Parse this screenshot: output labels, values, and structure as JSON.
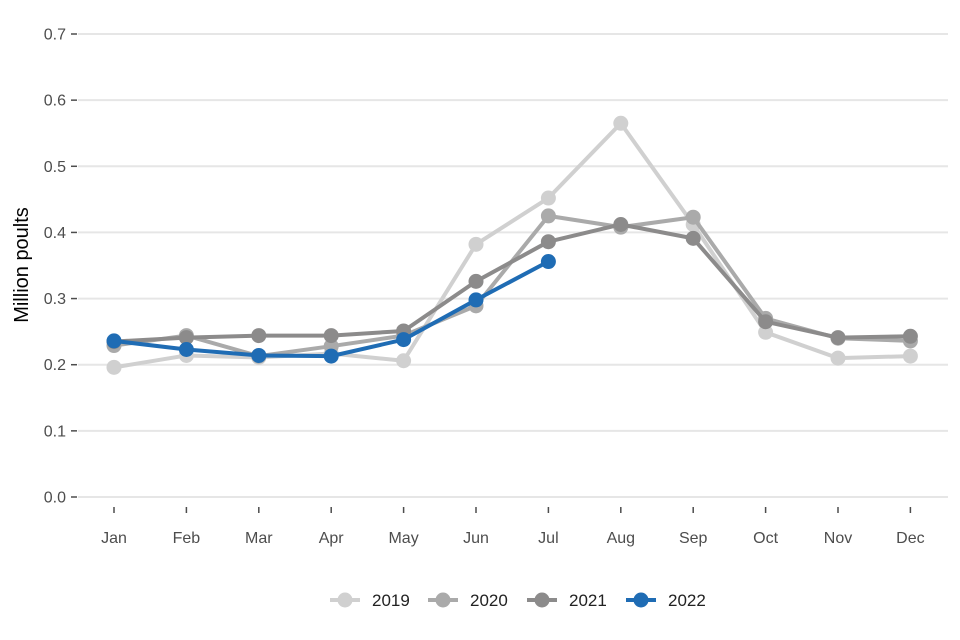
{
  "chart_data": {
    "type": "line",
    "title": "",
    "xlabel": "",
    "ylabel": "Million poults",
    "categories": [
      "Jan",
      "Feb",
      "Mar",
      "Apr",
      "May",
      "Jun",
      "Jul",
      "Aug",
      "Sep",
      "Oct",
      "Nov",
      "Dec"
    ],
    "ylim": [
      0,
      0.7
    ],
    "yticks": [
      0.0,
      0.1,
      0.2,
      0.3,
      0.4,
      0.5,
      0.6,
      0.7
    ],
    "ytick_labels": [
      "0.0",
      "0.1",
      "0.2",
      "0.3",
      "0.4",
      "0.5",
      "0.6",
      "0.7"
    ],
    "grid": "horizontal",
    "legend_position": "bottom",
    "series": [
      {
        "name": "2019",
        "color": "#d0d0d0",
        "values": [
          0.196,
          0.214,
          0.211,
          0.217,
          0.206,
          0.382,
          0.452,
          0.565,
          0.412,
          0.249,
          0.21,
          0.213
        ]
      },
      {
        "name": "2020",
        "color": "#aaaaaa",
        "values": [
          0.229,
          0.244,
          0.213,
          0.228,
          0.244,
          0.289,
          0.425,
          0.408,
          0.423,
          0.27,
          0.24,
          0.236
        ]
      },
      {
        "name": "2021",
        "color": "#8c8b8b",
        "values": [
          0.235,
          0.241,
          0.244,
          0.244,
          0.251,
          0.326,
          0.386,
          0.412,
          0.391,
          0.265,
          0.241,
          0.243
        ]
      },
      {
        "name": "2022",
        "color": "#1f6cb4",
        "values": [
          0.236,
          0.223,
          0.214,
          0.213,
          0.238,
          0.298,
          0.356,
          null,
          null,
          null,
          null,
          null
        ]
      }
    ]
  }
}
